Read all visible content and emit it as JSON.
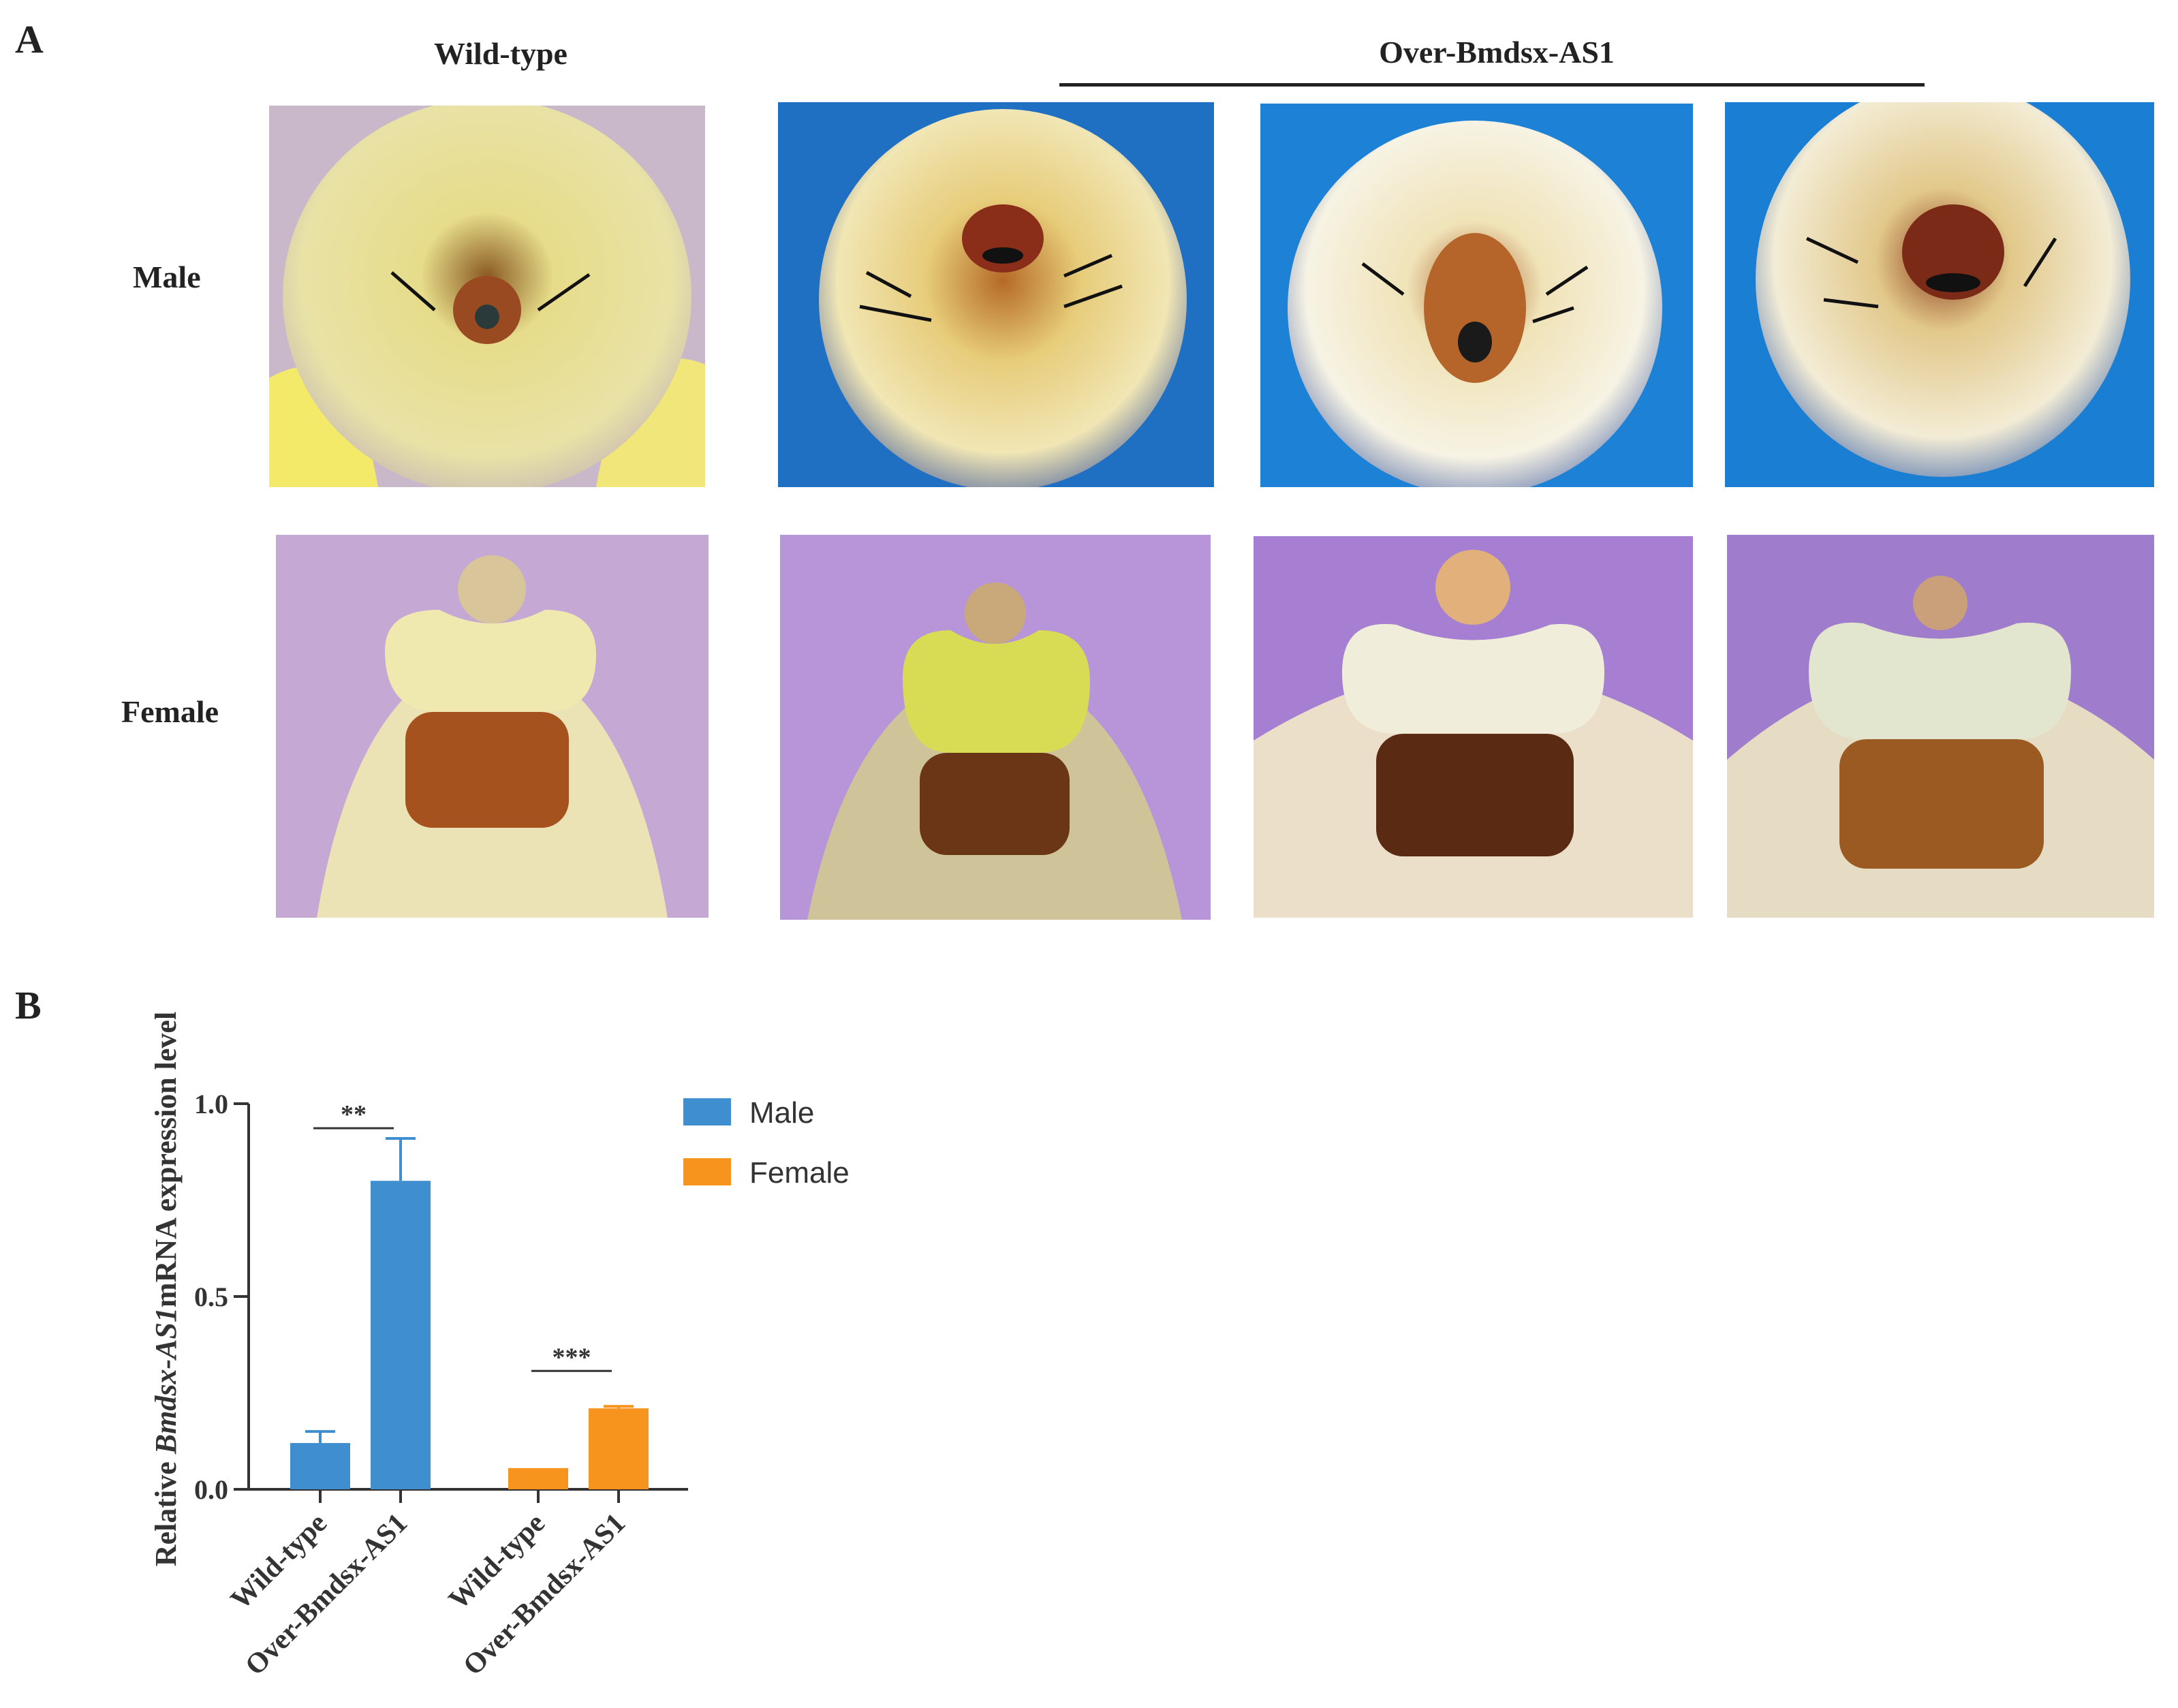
{
  "panel_a": {
    "letter": "A",
    "col_wild": "Wild-type",
    "col_over": "Over-Bmdsx-AS1",
    "row_male": "Male",
    "row_female": "Female"
  },
  "panel_b": {
    "letter": "B"
  },
  "colors": {
    "male": "#3f8fd0",
    "female": "#f7941d"
  },
  "chart_data": {
    "type": "bar",
    "ylabel_parts": [
      "Relative ",
      "Bmdsx-AS1",
      "mRNA expression level"
    ],
    "ylim": [
      0,
      1.0
    ],
    "yticks": [
      0.0,
      0.5,
      1.0
    ],
    "ytick_labels": [
      "0.0",
      "0.5",
      "1.0"
    ],
    "grid": false,
    "legend_position": "right",
    "series": [
      {
        "name": "Male",
        "color": "#3f8fd0",
        "categories": [
          "Wild-type",
          "Over-Bmdsx-AS1"
        ],
        "values": [
          0.12,
          0.8
        ],
        "errors": [
          0.03,
          0.11
        ]
      },
      {
        "name": "Female",
        "color": "#f7941d",
        "categories": [
          "Wild-type",
          "Over-Bmdsx-AS1"
        ],
        "values": [
          0.055,
          0.21
        ],
        "errors": [
          0.0,
          0.005
        ]
      }
    ],
    "significance": [
      {
        "group": "Male",
        "label": "**"
      },
      {
        "group": "Female",
        "label": "***"
      }
    ]
  }
}
